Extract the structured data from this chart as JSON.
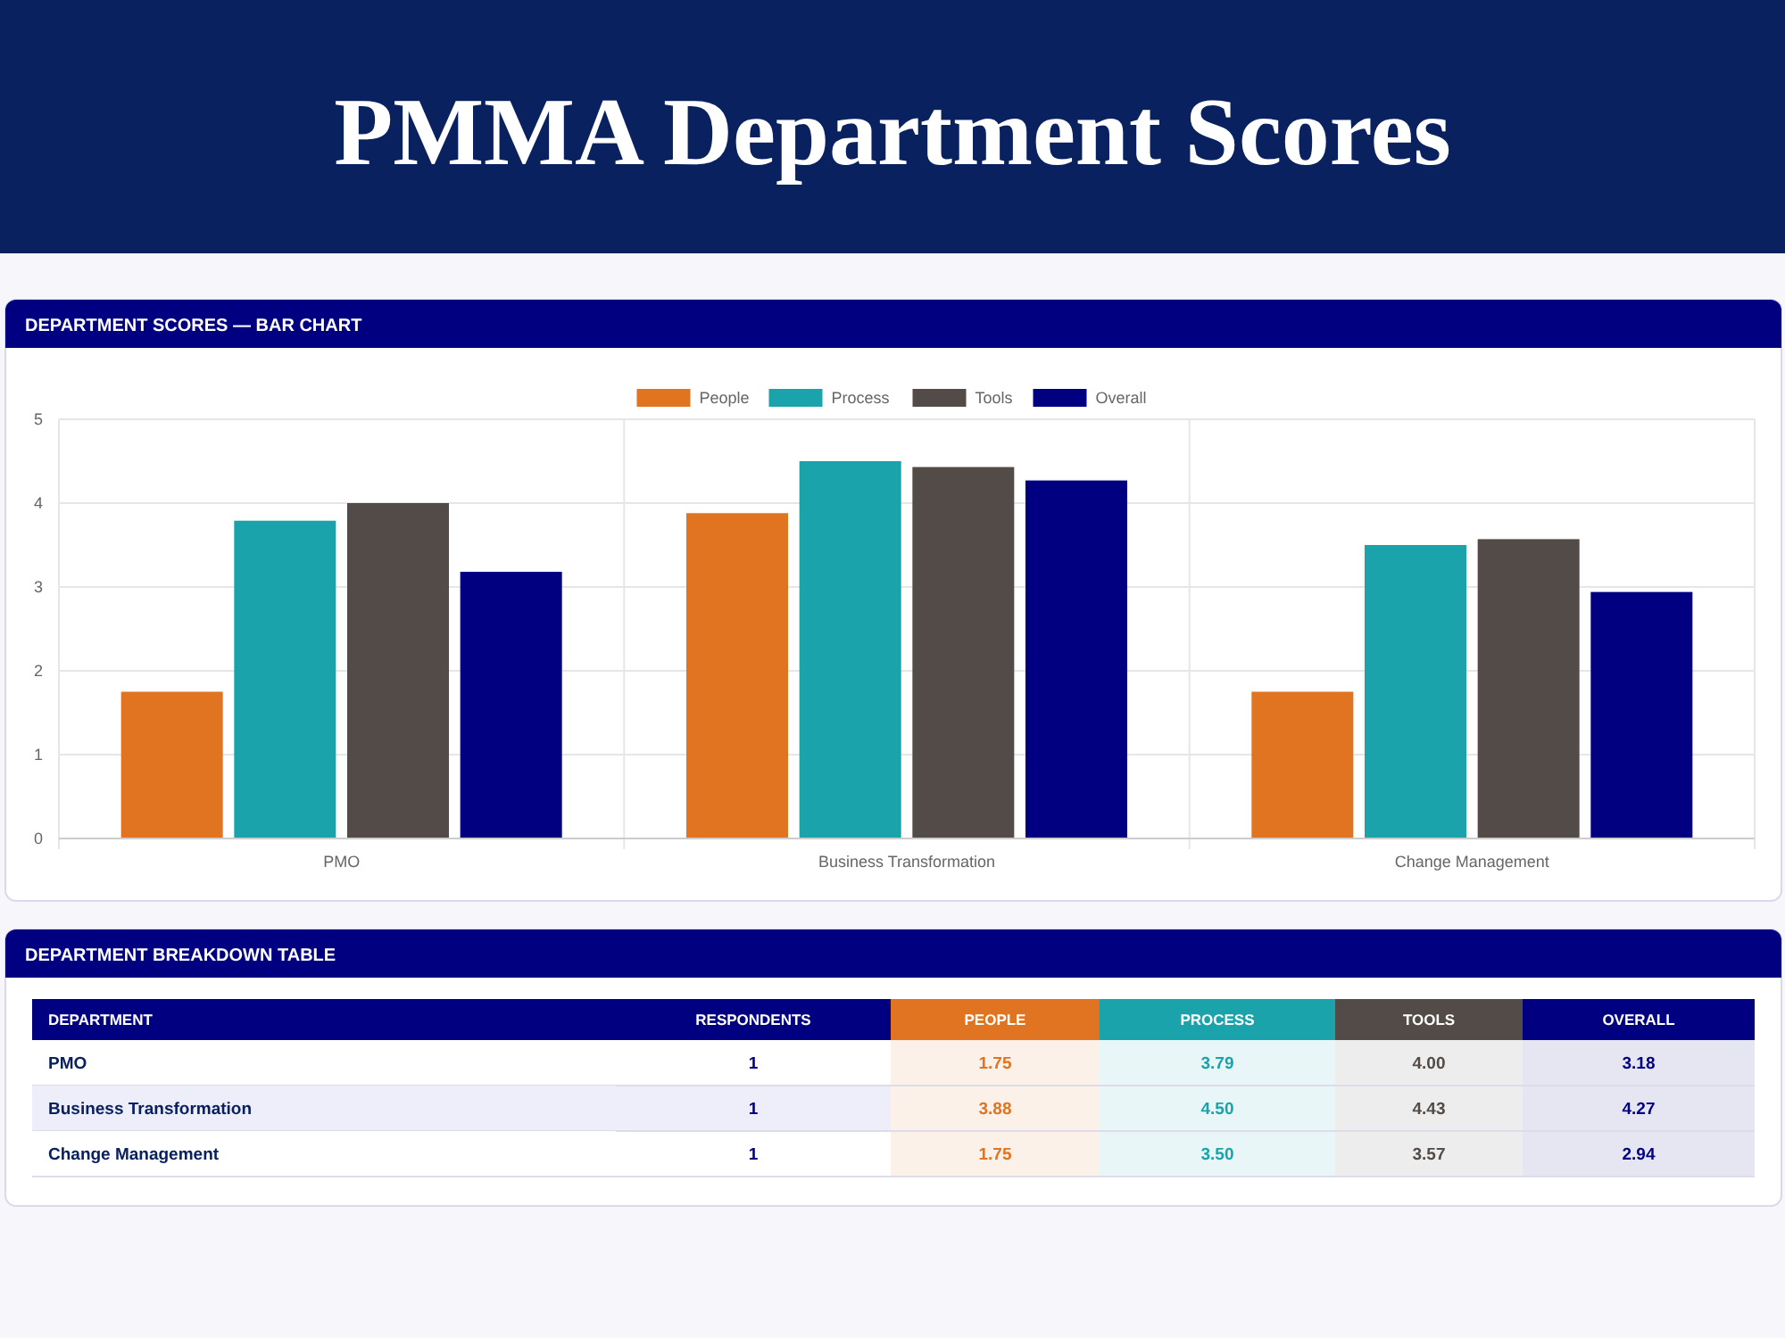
{
  "chart_data": [
    {
      "type": "bar",
      "title": "PMMA Department Scores",
      "subtitle": "DEPARTMENT SCORES — BAR CHART",
      "categories": [
        "PMO",
        "Business Transformation",
        "Change Management"
      ],
      "series": [
        {
          "name": "People",
          "color": "#e07420",
          "values": [
            1.75,
            3.88,
            1.75
          ]
        },
        {
          "name": "Process",
          "color": "#1ba3ab",
          "values": [
            3.79,
            4.5,
            3.5
          ]
        },
        {
          "name": "Tools",
          "color": "#524b47",
          "values": [
            4.0,
            4.43,
            3.57
          ]
        },
        {
          "name": "Overall",
          "color": "#000080",
          "values": [
            3.18,
            4.27,
            2.94
          ]
        }
      ],
      "ylim": [
        0,
        5
      ],
      "yticks": [
        0,
        1,
        2,
        3,
        4,
        5
      ],
      "grid": true,
      "legend": "top"
    },
    {
      "type": "other",
      "title": "DEPARTMENT BREAKDOWN TABLE",
      "xlabel": "DEPARTMENT",
      "categories": [
        "PMO",
        "Business Transformation",
        "Change Management"
      ],
      "series": [
        {
          "name": "RESPONDENTS",
          "colors": [
            "#ffffff",
            "#eeeefa",
            "#ffffff"
          ],
          "values": [
            1,
            1,
            1
          ],
          "value_labels": [
            "1",
            "1",
            "1"
          ]
        },
        {
          "name": "PEOPLE",
          "values": [
            1.75,
            3.88,
            1.75
          ],
          "value_labels": [
            "1.75",
            "3.88",
            "1.75"
          ]
        },
        {
          "name": "PROCESS",
          "values": [
            3.79,
            4.5,
            3.5
          ],
          "value_labels": [
            "3.79",
            "4.50",
            "3.50"
          ]
        },
        {
          "name": "TOOLS",
          "values": [
            4.0,
            4.43,
            3.57
          ],
          "value_labels": [
            "4.00",
            "4.43",
            "3.57"
          ]
        },
        {
          "name": "OVERALL",
          "values": [
            3.18,
            4.27,
            2.94
          ],
          "value_labels": [
            "3.18",
            "4.27",
            "2.94"
          ]
        }
      ]
    }
  ]
}
